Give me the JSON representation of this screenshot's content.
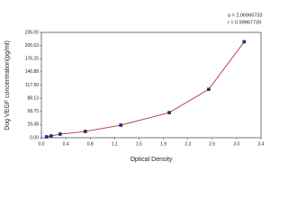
{
  "chart_data": {
    "type": "scatter",
    "x_label": "Optical Density",
    "y_label": "Dog VEGF concentration(pg/ml)",
    "annotations": [
      "a = 2.06966733",
      "r = 0.99967739"
    ],
    "xlim": [
      0,
      3.4
    ],
    "xticks": [
      {
        "value": 0,
        "label": "0.0"
      },
      {
        "value": 0.378,
        "label": "0.4"
      },
      {
        "value": 0.756,
        "label": "0.8"
      },
      {
        "value": 1.133,
        "label": "1.1"
      },
      {
        "value": 1.511,
        "label": "1.5"
      },
      {
        "value": 1.889,
        "label": "1.9"
      },
      {
        "value": 2.267,
        "label": "2.3"
      },
      {
        "value": 2.644,
        "label": "2.6"
      },
      {
        "value": 3.022,
        "label": "3.0"
      },
      {
        "value": 3.4,
        "label": "3.4"
      }
    ],
    "ylim": [
      0,
      235
    ],
    "yticks": [
      {
        "value": 0,
        "label": "0.00"
      },
      {
        "value": 29.375,
        "label": "29.38"
      },
      {
        "value": 58.75,
        "label": "58.75"
      },
      {
        "value": 88.125,
        "label": "88.13"
      },
      {
        "value": 117.5,
        "label": "117.50"
      },
      {
        "value": 146.875,
        "label": "146.88"
      },
      {
        "value": 176.25,
        "label": "176.25"
      },
      {
        "value": 205.625,
        "label": "205.63"
      },
      {
        "value": 235,
        "label": "235.00"
      }
    ],
    "point_color": "#1f2a7a",
    "line_color": "#b0303a",
    "x": [
      0.08,
      0.15,
      0.29,
      0.68,
      1.23,
      1.98,
      2.59,
      3.14
    ],
    "values": [
      2,
      4,
      8,
      14,
      28,
      56,
      108,
      214
    ]
  }
}
